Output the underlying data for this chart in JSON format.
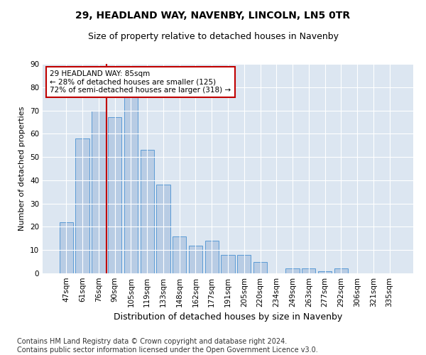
{
  "title": "29, HEADLAND WAY, NAVENBY, LINCOLN, LN5 0TR",
  "subtitle": "Size of property relative to detached houses in Navenby",
  "xlabel": "Distribution of detached houses by size in Navenby",
  "ylabel": "Number of detached properties",
  "categories": [
    "47sqm",
    "61sqm",
    "76sqm",
    "90sqm",
    "105sqm",
    "119sqm",
    "133sqm",
    "148sqm",
    "162sqm",
    "177sqm",
    "191sqm",
    "205sqm",
    "220sqm",
    "234sqm",
    "249sqm",
    "263sqm",
    "277sqm",
    "292sqm",
    "306sqm",
    "321sqm",
    "335sqm"
  ],
  "values": [
    22,
    58,
    70,
    67,
    76,
    53,
    38,
    16,
    12,
    14,
    8,
    8,
    5,
    0,
    2,
    2,
    1,
    2,
    0,
    0,
    0
  ],
  "bar_color": "#b8cce4",
  "bar_edge_color": "#5b9bd5",
  "vline_color": "#c00000",
  "vline_pos": 2.5,
  "annotation_text": "29 HEADLAND WAY: 85sqm\n← 28% of detached houses are smaller (125)\n72% of semi-detached houses are larger (318) →",
  "annotation_box_color": "white",
  "annotation_box_edge_color": "#c00000",
  "ylim": [
    0,
    90
  ],
  "background_color": "#dce6f1",
  "footer_text": "Contains HM Land Registry data © Crown copyright and database right 2024.\nContains public sector information licensed under the Open Government Licence v3.0.",
  "title_fontsize": 10,
  "subtitle_fontsize": 9,
  "xlabel_fontsize": 9,
  "ylabel_fontsize": 8,
  "tick_fontsize": 7.5,
  "annot_fontsize": 7.5,
  "footer_fontsize": 7
}
